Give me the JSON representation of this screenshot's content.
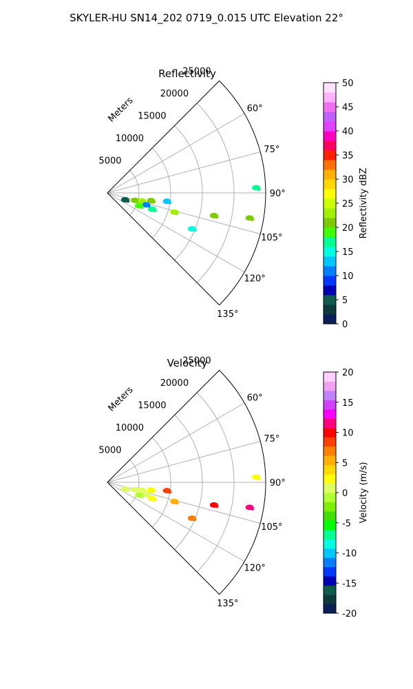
{
  "figure": {
    "title": "SKYLER-HU  SN14_202  0719_0.015 UTC Elevation 22°"
  },
  "chart_data": [
    {
      "type": "polar-sector",
      "title": "Reflectivity",
      "range_label": "Meters",
      "r_ticks": [
        5000,
        10000,
        15000,
        20000,
        25000
      ],
      "r_max": 25000,
      "theta_range_deg": [
        45,
        135
      ],
      "theta_ticks_deg": [
        60,
        75,
        90,
        105,
        120,
        135
      ],
      "grid": true,
      "colorbar": {
        "label": "Reflectivity dBZ",
        "min": 0,
        "max": 50,
        "ticks": [
          0,
          5,
          10,
          15,
          20,
          25,
          30,
          35,
          40,
          45,
          50
        ],
        "colors": [
          "#0a1e5a",
          "#0d3a3a",
          "#0e5c4c",
          "#0000b4",
          "#0038ff",
          "#0080ff",
          "#00c8ff",
          "#00ffe0",
          "#00ff90",
          "#40ff00",
          "#7ccc00",
          "#a0f000",
          "#ccff00",
          "#ffff00",
          "#ffd800",
          "#ffb000",
          "#ff7000",
          "#ff2000",
          "#ff0060",
          "#ff00c0",
          "#e040ff",
          "#c060ff",
          "#f070f0",
          "#ffb0ff",
          "#ffe0ff"
        ]
      },
      "echoes": [
        {
          "range_m": 4500,
          "az_deg": 105,
          "value": 20
        },
        {
          "range_m": 5600,
          "az_deg": 103,
          "value": 22
        },
        {
          "range_m": 7000,
          "az_deg": 100,
          "value": 20
        },
        {
          "range_m": 6400,
          "az_deg": 107,
          "value": 10
        },
        {
          "range_m": 5400,
          "az_deg": 112,
          "value": 18
        },
        {
          "range_m": 7500,
          "az_deg": 110,
          "value": 17
        },
        {
          "range_m": 9500,
          "az_deg": 98,
          "value": 12
        },
        {
          "range_m": 11000,
          "az_deg": 106,
          "value": 22
        },
        {
          "range_m": 14500,
          "az_deg": 113,
          "value": 14
        },
        {
          "range_m": 17200,
          "az_deg": 102,
          "value": 21
        },
        {
          "range_m": 22800,
          "az_deg": 100,
          "value": 20
        },
        {
          "range_m": 23500,
          "az_deg": 88,
          "value": 17
        },
        {
          "range_m": 3000,
          "az_deg": 111,
          "value": 5
        }
      ]
    },
    {
      "type": "polar-sector",
      "title": "Velocity",
      "range_label": "Meters",
      "r_ticks": [
        5000,
        10000,
        15000,
        20000,
        25000
      ],
      "r_max": 25000,
      "theta_range_deg": [
        45,
        135
      ],
      "theta_ticks_deg": [
        60,
        75,
        90,
        105,
        120,
        135
      ],
      "grid": true,
      "colorbar": {
        "label": "Velocity (m/s)",
        "min": -20,
        "max": 20,
        "ticks": [
          -20,
          -15,
          -10,
          -5,
          0,
          5,
          10,
          15,
          20
        ],
        "colors": [
          "#0a1e5a",
          "#0d3a3a",
          "#0e5c4c",
          "#0000b4",
          "#0038ff",
          "#0080ff",
          "#00c8ff",
          "#00ffe0",
          "#00ff90",
          "#00ff00",
          "#40e000",
          "#7cf000",
          "#b0ff30",
          "#e0ff60",
          "#ffff00",
          "#ffd800",
          "#ffb000",
          "#ff8000",
          "#ff4000",
          "#ff0000",
          "#ff0080",
          "#ff00ff",
          "#d040ff",
          "#c080ff",
          "#f0a0f0",
          "#ffd0ff"
        ]
      },
      "echoes": [
        {
          "range_m": 4500,
          "az_deg": 105,
          "value": 1
        },
        {
          "range_m": 5600,
          "az_deg": 103,
          "value": 1
        },
        {
          "range_m": 7000,
          "az_deg": 100,
          "value": 2
        },
        {
          "range_m": 6400,
          "az_deg": 107,
          "value": 0
        },
        {
          "range_m": 5400,
          "az_deg": 112,
          "value": -1
        },
        {
          "range_m": 7500,
          "az_deg": 110,
          "value": 3
        },
        {
          "range_m": 9500,
          "az_deg": 98,
          "value": 8
        },
        {
          "range_m": 11000,
          "az_deg": 106,
          "value": 6
        },
        {
          "range_m": 14500,
          "az_deg": 113,
          "value": 7
        },
        {
          "range_m": 17200,
          "az_deg": 102,
          "value": 10
        },
        {
          "range_m": 22800,
          "az_deg": 100,
          "value": 12
        },
        {
          "range_m": 23500,
          "az_deg": 88,
          "value": 2
        },
        {
          "range_m": 3000,
          "az_deg": 111,
          "value": 0
        }
      ]
    }
  ]
}
